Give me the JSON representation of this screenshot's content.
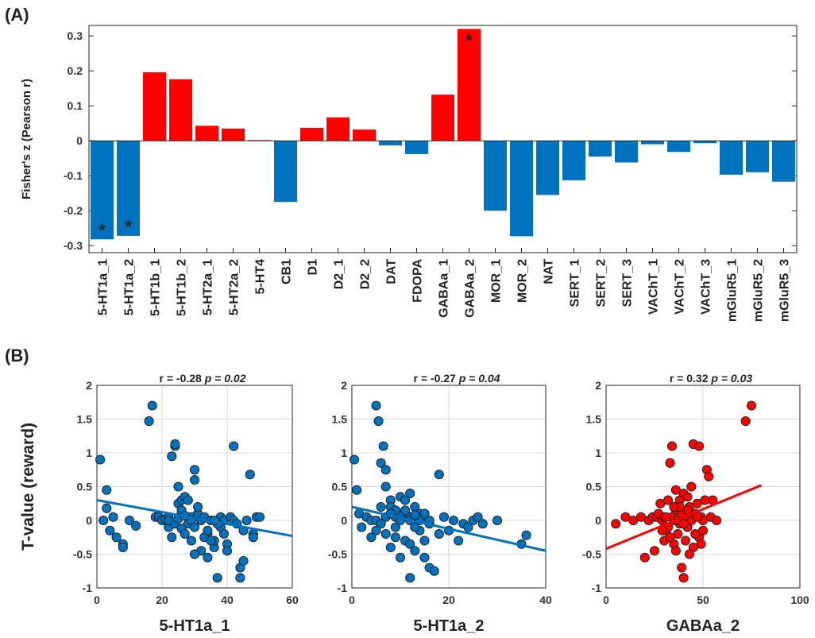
{
  "panel_a_label": "(A)",
  "panel_b_label": "(B)",
  "chart_data": [
    {
      "type": "bar",
      "panel": "(A)",
      "ylabel": "Fisher's z (Pearson r)",
      "ylim": [
        -0.32,
        0.33
      ],
      "yticks": [
        -0.3,
        -0.2,
        -0.1,
        0,
        0.1,
        0.2,
        0.3
      ],
      "ytick_labels": [
        "-0.3",
        "-0.2",
        "-0.1",
        "0",
        "0.1",
        "0.2",
        "0.3"
      ],
      "grid": false,
      "colors": {
        "positive": "#ff0000",
        "negative": "#0072bd"
      },
      "categories": [
        "5-HT1a_1",
        "5-HT1a_2",
        "5-HT1b_1",
        "5-HT1b_2",
        "5-HT2a_1",
        "5-HT2a_2",
        "5-HT4",
        "CB1",
        "D1",
        "D2_1",
        "D2_2",
        "DAT",
        "FDOPA",
        "GABAa_1",
        "GABAa_2",
        "MOR_1",
        "MOR_2",
        "NAT",
        "SERT_1",
        "SERT_2",
        "SERT_3",
        "VAChT_1",
        "VAChT_2",
        "VAChT_3",
        "mGluR5_1",
        "mGluR5_2",
        "mGluR5_3"
      ],
      "values": [
        -0.282,
        -0.272,
        0.196,
        0.176,
        0.043,
        0.035,
        0.002,
        -0.175,
        0.037,
        0.067,
        0.032,
        -0.013,
        -0.038,
        0.132,
        0.32,
        -0.2,
        -0.273,
        -0.155,
        -0.113,
        -0.045,
        -0.062,
        -0.01,
        -0.032,
        -0.007,
        -0.097,
        -0.09,
        -0.117
      ],
      "significance_marker": "*",
      "significant": [
        "5-HT1a_1",
        "5-HT1a_2",
        "GABAa_2"
      ]
    },
    {
      "type": "scatter",
      "panel": "(B)",
      "title_r": "r = -0.28",
      "title_p": "p = 0.02",
      "xlabel": "5-HT1a_1",
      "ylabel": "T-value (reward)",
      "xlim": [
        0,
        60
      ],
      "ylim": [
        -1,
        2
      ],
      "xticks": [
        0,
        20,
        40,
        60
      ],
      "yticks": [
        -1,
        -0.5,
        0,
        0.5,
        1,
        1.5,
        2
      ],
      "ytick_labels": [
        "-1",
        "-0.5",
        "0",
        "0.5",
        "1",
        "1.5",
        "2"
      ],
      "grid": true,
      "color": "#0072bd",
      "fit": {
        "x": [
          0,
          60
        ],
        "y": [
          0.3,
          -0.23
        ]
      },
      "points": [
        [
          1,
          0.9
        ],
        [
          3,
          0.45
        ],
        [
          5,
          0.05
        ],
        [
          6,
          -0.25
        ],
        [
          8,
          -0.35
        ],
        [
          8,
          -0.4
        ],
        [
          4,
          -0.15
        ],
        [
          3,
          0.18
        ],
        [
          2,
          0.0
        ],
        [
          10,
          0.0
        ],
        [
          12,
          -0.08
        ],
        [
          16,
          1.47
        ],
        [
          17,
          1.7
        ],
        [
          18,
          0.05
        ],
        [
          19,
          0.05
        ],
        [
          20,
          0.0
        ],
        [
          21,
          0.02
        ],
        [
          22,
          0.05
        ],
        [
          22,
          -0.1
        ],
        [
          23,
          -0.25
        ],
        [
          23,
          0.95
        ],
        [
          24,
          1.1
        ],
        [
          24,
          1.13
        ],
        [
          25,
          0.5
        ],
        [
          25,
          0.25
        ],
        [
          26,
          0.1
        ],
        [
          26,
          0.3
        ],
        [
          27,
          0.35
        ],
        [
          28,
          -0.05
        ],
        [
          28,
          0.3
        ],
        [
          29,
          0.05
        ],
        [
          29,
          0.0
        ],
        [
          30,
          -0.1
        ],
        [
          30,
          0.75
        ],
        [
          30,
          0.6
        ],
        [
          31,
          0.1
        ],
        [
          31,
          0.2
        ],
        [
          32,
          -0.45
        ],
        [
          32,
          0.0
        ],
        [
          33,
          0.05
        ],
        [
          34,
          -0.55
        ],
        [
          34,
          -0.2
        ],
        [
          35,
          0.0
        ],
        [
          36,
          -0.4
        ],
        [
          36,
          -0.3
        ],
        [
          37,
          -0.85
        ],
        [
          38,
          0.05
        ],
        [
          38,
          -0.1
        ],
        [
          39,
          0.0
        ],
        [
          40,
          -0.35
        ],
        [
          41,
          0.05
        ],
        [
          42,
          1.1
        ],
        [
          42,
          0.0
        ],
        [
          43,
          -0.05
        ],
        [
          44,
          -0.7
        ],
        [
          45,
          -0.6
        ],
        [
          45,
          -0.15
        ],
        [
          46,
          0.0
        ],
        [
          47,
          0.68
        ],
        [
          48,
          -0.2
        ],
        [
          49,
          0.05
        ],
        [
          50,
          0.05
        ],
        [
          22,
          0.0
        ],
        [
          24,
          -0.05
        ],
        [
          26,
          -0.12
        ],
        [
          27,
          -0.2
        ],
        [
          33,
          -0.25
        ],
        [
          35,
          -0.3
        ],
        [
          39,
          -0.2
        ],
        [
          40,
          -0.45
        ],
        [
          44,
          -0.85
        ],
        [
          48,
          -0.25
        ],
        [
          25,
          0.03
        ],
        [
          26,
          0.15
        ],
        [
          27,
          0.07
        ],
        [
          29,
          -0.3
        ],
        [
          34,
          -0.15
        ],
        [
          37,
          -0.05
        ],
        [
          30,
          -0.5
        ],
        [
          36,
          0.0
        ]
      ]
    },
    {
      "type": "scatter",
      "panel": "(B)",
      "title_r": "r = -0.27",
      "title_p": "p = 0.04",
      "xlabel": "5-HT1a_2",
      "ylabel": "",
      "xlim": [
        0,
        40
      ],
      "ylim": [
        -1,
        2
      ],
      "xticks": [
        0,
        20,
        40
      ],
      "yticks": [
        -1,
        -0.5,
        0,
        0.5,
        1,
        1.5,
        2
      ],
      "ytick_labels": [
        "-1",
        "-0.5",
        "0",
        "0.5",
        "1",
        "1.5",
        "2"
      ],
      "grid": true,
      "color": "#0072bd",
      "fit": {
        "x": [
          0,
          40
        ],
        "y": [
          0.2,
          -0.45
        ]
      },
      "points": [
        [
          0.5,
          0.9
        ],
        [
          1,
          0.45
        ],
        [
          1.5,
          0.1
        ],
        [
          2,
          -0.1
        ],
        [
          3,
          0.05
        ],
        [
          4,
          0.0
        ],
        [
          5,
          1.7
        ],
        [
          5.5,
          1.47
        ],
        [
          6,
          0.85
        ],
        [
          6.5,
          1.1
        ],
        [
          7,
          0.75
        ],
        [
          7,
          0.5
        ],
        [
          8,
          0.3
        ],
        [
          8,
          0.2
        ],
        [
          9,
          0.05
        ],
        [
          9,
          -0.1
        ],
        [
          10,
          0.0
        ],
        [
          10,
          0.35
        ],
        [
          11,
          0.1
        ],
        [
          11,
          -0.3
        ],
        [
          12,
          0.05
        ],
        [
          12,
          -0.85
        ],
        [
          13,
          0.0
        ],
        [
          13,
          0.2
        ],
        [
          14,
          -0.15
        ],
        [
          14,
          0.1
        ],
        [
          15,
          -0.55
        ],
        [
          15,
          0.05
        ],
        [
          16,
          -0.05
        ],
        [
          16,
          -0.7
        ],
        [
          17,
          -0.75
        ],
        [
          18,
          0.68
        ],
        [
          18,
          -0.2
        ],
        [
          19,
          0.05
        ],
        [
          20,
          -0.15
        ],
        [
          21,
          0.0
        ],
        [
          22,
          -0.3
        ],
        [
          23,
          -0.05
        ],
        [
          24,
          -0.1
        ],
        [
          25,
          0.0
        ],
        [
          26,
          0.05
        ],
        [
          27,
          -0.05
        ],
        [
          30,
          0.0
        ],
        [
          35,
          -0.35
        ],
        [
          36,
          -0.22
        ],
        [
          5,
          0.0
        ],
        [
          6,
          -0.05
        ],
        [
          7,
          -0.2
        ],
        [
          8,
          -0.4
        ],
        [
          9,
          -0.25
        ],
        [
          10,
          0.1
        ],
        [
          11,
          0.15
        ],
        [
          12,
          0.0
        ],
        [
          13,
          -0.1
        ],
        [
          14,
          0.0
        ],
        [
          15,
          0.1
        ],
        [
          16,
          0.0
        ],
        [
          6,
          0.2
        ],
        [
          7,
          0.05
        ],
        [
          9,
          0.15
        ],
        [
          10,
          -0.55
        ],
        [
          12,
          -0.35
        ],
        [
          13,
          -0.45
        ],
        [
          15,
          -0.3
        ],
        [
          8,
          0.1
        ],
        [
          11,
          0.3
        ],
        [
          12,
          0.4
        ],
        [
          4,
          -0.25
        ],
        [
          5,
          -0.15
        ],
        [
          13,
          0.08
        ]
      ]
    },
    {
      "type": "scatter",
      "panel": "(B)",
      "title_r": "r = 0.32",
      "title_p": "p = 0.03",
      "xlabel": "GABAa_2",
      "ylabel": "",
      "xlim": [
        0,
        100
      ],
      "ylim": [
        -1,
        2
      ],
      "xticks": [
        0,
        50,
        100
      ],
      "yticks": [
        -1,
        -0.5,
        0,
        0.5,
        1,
        1.5,
        2
      ],
      "ytick_labels": [
        "-1",
        "-0.5",
        "0",
        "0.5",
        "1",
        "1.5",
        "2"
      ],
      "grid": true,
      "color": "#ff0000",
      "fit": {
        "x": [
          0,
          80
        ],
        "y": [
          -0.42,
          0.52
        ]
      },
      "points": [
        [
          5,
          -0.05
        ],
        [
          10,
          0.05
        ],
        [
          14,
          0.0
        ],
        [
          18,
          0.05
        ],
        [
          20,
          -0.55
        ],
        [
          22,
          0.0
        ],
        [
          24,
          0.05
        ],
        [
          25,
          -0.45
        ],
        [
          26,
          0.05
        ],
        [
          27,
          0.1
        ],
        [
          28,
          0.25
        ],
        [
          29,
          0.0
        ],
        [
          30,
          0.05
        ],
        [
          31,
          -0.15
        ],
        [
          32,
          0.3
        ],
        [
          33,
          0.85
        ],
        [
          34,
          1.1
        ],
        [
          35,
          0.0
        ],
        [
          35,
          -0.35
        ],
        [
          36,
          0.15
        ],
        [
          37,
          -0.2
        ],
        [
          38,
          -0.05
        ],
        [
          38,
          0.3
        ],
        [
          39,
          -0.7
        ],
        [
          40,
          -0.85
        ],
        [
          40,
          0.4
        ],
        [
          41,
          0.0
        ],
        [
          42,
          -0.1
        ],
        [
          43,
          0.2
        ],
        [
          44,
          0.5
        ],
        [
          45,
          1.13
        ],
        [
          45,
          -0.4
        ],
        [
          46,
          0.1
        ],
        [
          47,
          0.25
        ],
        [
          48,
          -0.25
        ],
        [
          48,
          1.1
        ],
        [
          49,
          0.05
        ],
        [
          50,
          -0.15
        ],
        [
          50,
          0.0
        ],
        [
          51,
          0.3
        ],
        [
          52,
          0.75
        ],
        [
          53,
          0.65
        ],
        [
          54,
          0.05
        ],
        [
          55,
          0.3
        ],
        [
          57,
          0.0
        ],
        [
          72,
          1.47
        ],
        [
          75,
          1.7
        ],
        [
          30,
          -0.3
        ],
        [
          32,
          -0.1
        ],
        [
          34,
          0.05
        ],
        [
          36,
          -0.45
        ],
        [
          37,
          0.0
        ],
        [
          39,
          0.1
        ],
        [
          41,
          -0.3
        ],
        [
          42,
          0.15
        ],
        [
          43,
          -0.5
        ],
        [
          44,
          0.0
        ],
        [
          46,
          -0.2
        ],
        [
          47,
          0.05
        ],
        [
          49,
          -0.35
        ],
        [
          36,
          0.45
        ],
        [
          38,
          0.2
        ],
        [
          40,
          -0.05
        ],
        [
          33,
          -0.25
        ],
        [
          35,
          0.2
        ],
        [
          31,
          0.05
        ],
        [
          29,
          -0.15
        ],
        [
          42,
          0.35
        ]
      ]
    }
  ]
}
